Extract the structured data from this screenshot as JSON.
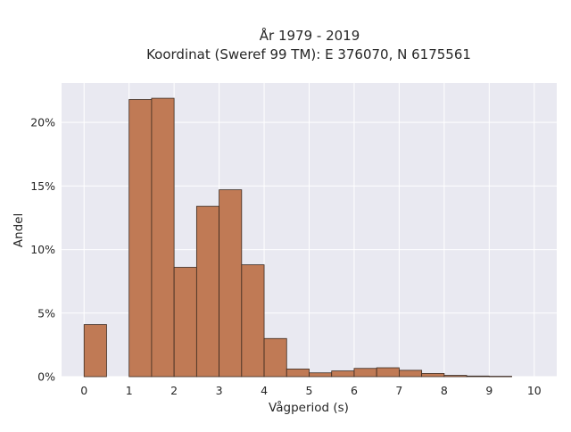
{
  "chart_data": {
    "type": "bar",
    "title": "År 1979 - 2019",
    "subtitle": "Koordinat (Sweref 99 TM): E 376070, N 6175561",
    "xlabel": "Vågperiod (s)",
    "ylabel": "Andel",
    "bin_width": 0.5,
    "xlim": [
      -0.5,
      10.5
    ],
    "ylim": [
      0,
      23.1
    ],
    "x_ticks": [
      0,
      1,
      2,
      3,
      4,
      5,
      6,
      7,
      8,
      9,
      10
    ],
    "x_tick_labels": [
      "0",
      "1",
      "2",
      "3",
      "4",
      "5",
      "6",
      "7",
      "8",
      "9",
      "10"
    ],
    "y_ticks": [
      0,
      5,
      10,
      15,
      20
    ],
    "y_tick_labels": [
      "0%",
      "5%",
      "10%",
      "15%",
      "20%"
    ],
    "grid": true,
    "bar_color": "#c07a55",
    "edge_color": "#3b2a20",
    "background_color": "#e9e9f1",
    "bins": [
      {
        "x0": 0.0,
        "x1": 0.5,
        "value": 4.1
      },
      {
        "x0": 0.5,
        "x1": 1.0,
        "value": 0.0
      },
      {
        "x0": 1.0,
        "x1": 1.5,
        "value": 21.8
      },
      {
        "x0": 1.5,
        "x1": 2.0,
        "value": 21.9
      },
      {
        "x0": 2.0,
        "x1": 2.5,
        "value": 8.6
      },
      {
        "x0": 2.5,
        "x1": 3.0,
        "value": 13.4
      },
      {
        "x0": 3.0,
        "x1": 3.5,
        "value": 14.7
      },
      {
        "x0": 3.5,
        "x1": 4.0,
        "value": 8.8
      },
      {
        "x0": 4.0,
        "x1": 4.5,
        "value": 3.0
      },
      {
        "x0": 4.5,
        "x1": 5.0,
        "value": 0.6
      },
      {
        "x0": 5.0,
        "x1": 5.5,
        "value": 0.3
      },
      {
        "x0": 5.5,
        "x1": 6.0,
        "value": 0.45
      },
      {
        "x0": 6.0,
        "x1": 6.5,
        "value": 0.65
      },
      {
        "x0": 6.5,
        "x1": 7.0,
        "value": 0.7
      },
      {
        "x0": 7.0,
        "x1": 7.5,
        "value": 0.5
      },
      {
        "x0": 7.5,
        "x1": 8.0,
        "value": 0.25
      },
      {
        "x0": 8.0,
        "x1": 8.5,
        "value": 0.1
      },
      {
        "x0": 8.5,
        "x1": 9.0,
        "value": 0.05
      },
      {
        "x0": 9.0,
        "x1": 9.5,
        "value": 0.03
      },
      {
        "x0": 9.5,
        "x1": 10.0,
        "value": 0.0
      }
    ]
  }
}
